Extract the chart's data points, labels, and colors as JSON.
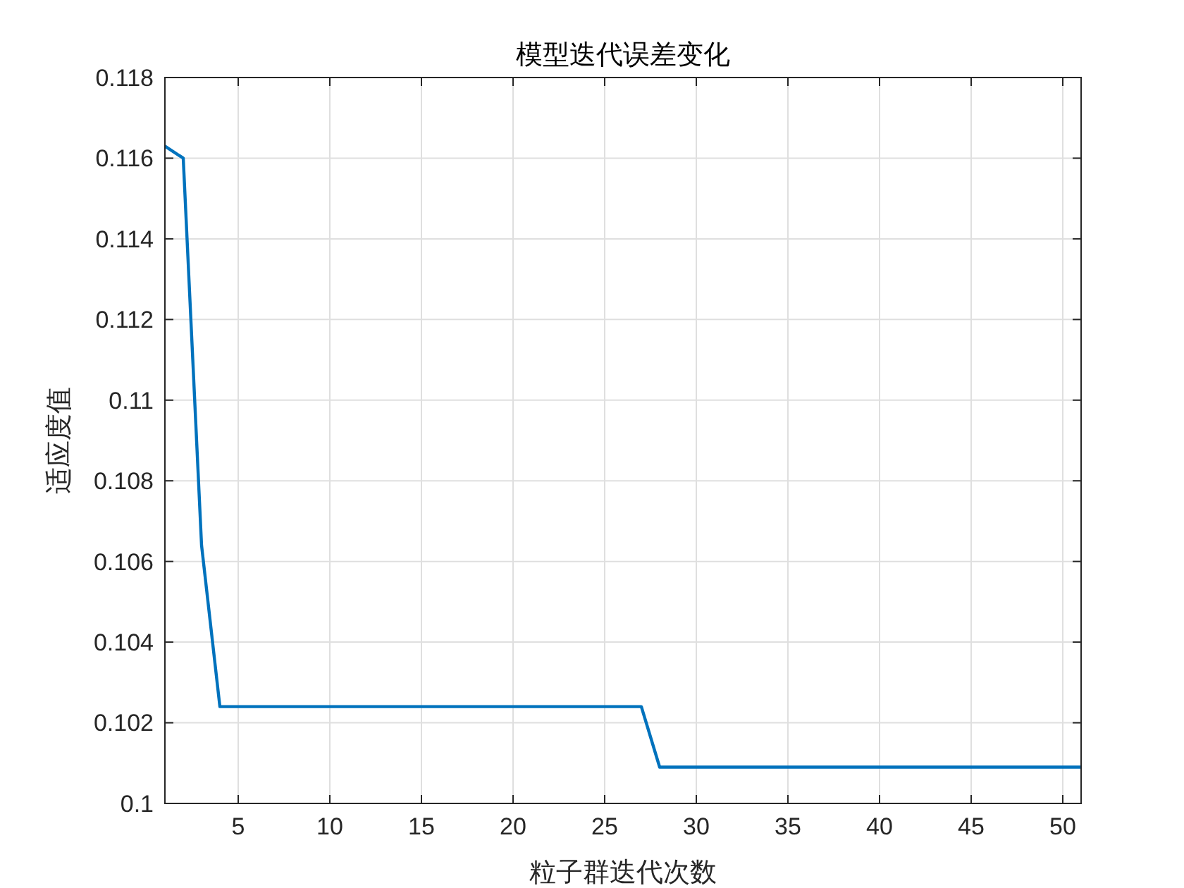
{
  "chart_data": {
    "type": "line",
    "title": "模型迭代误差变化",
    "xlabel": "粒子群迭代次数",
    "ylabel": "适应度值",
    "x": [
      1,
      2,
      3,
      4,
      27,
      28,
      51
    ],
    "series": [
      {
        "color": "#0072bd",
        "values": [
          0.1163,
          0.116,
          0.1064,
          0.1024,
          0.1024,
          0.1009,
          0.1009
        ]
      }
    ],
    "xlim": [
      1,
      51
    ],
    "xticks": [
      5,
      10,
      15,
      20,
      25,
      30,
      35,
      40,
      45,
      50
    ],
    "ylim": [
      0.1,
      0.118
    ],
    "yticks": [
      0.1,
      0.102,
      0.104,
      0.106,
      0.108,
      0.11,
      0.112,
      0.114,
      0.116,
      0.118
    ],
    "grid": true
  }
}
